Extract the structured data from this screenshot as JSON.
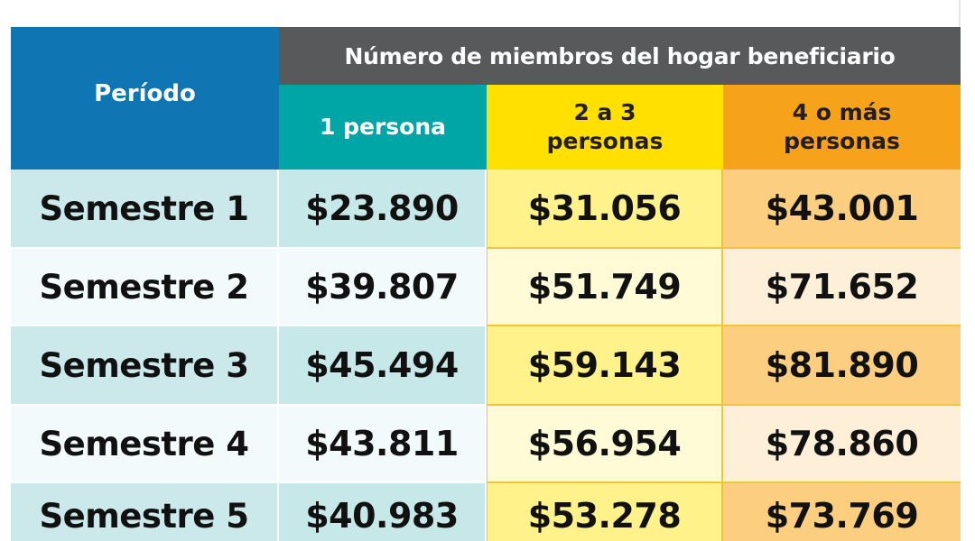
{
  "table": {
    "header": {
      "period": "Período",
      "group": "Número de miembros del hogar beneficiario",
      "columns": [
        "1 persona",
        "2 a 3 personas",
        "4 o más personas"
      ]
    },
    "rows": [
      {
        "period": "Semestre 1",
        "values": [
          "$23.890",
          "$31.056",
          "$43.001"
        ]
      },
      {
        "period": "Semestre 2",
        "values": [
          "$39.807",
          "$51.749",
          "$71.652"
        ]
      },
      {
        "period": "Semestre 3",
        "values": [
          "$45.494",
          "$59.143",
          "$81.890"
        ]
      },
      {
        "period": "Semestre 4",
        "values": [
          "$43.811",
          "$56.954",
          "$78.860"
        ]
      },
      {
        "period": "Semestre 5",
        "values": [
          "$40.983",
          "$53.278",
          "$73.769"
        ]
      }
    ]
  },
  "colors": {
    "period_header": "#0f75b3",
    "group_header": "#58595b",
    "col1_header": "#00a6a6",
    "col2_header": "#ffe000",
    "col3_header": "#f7a21b"
  }
}
